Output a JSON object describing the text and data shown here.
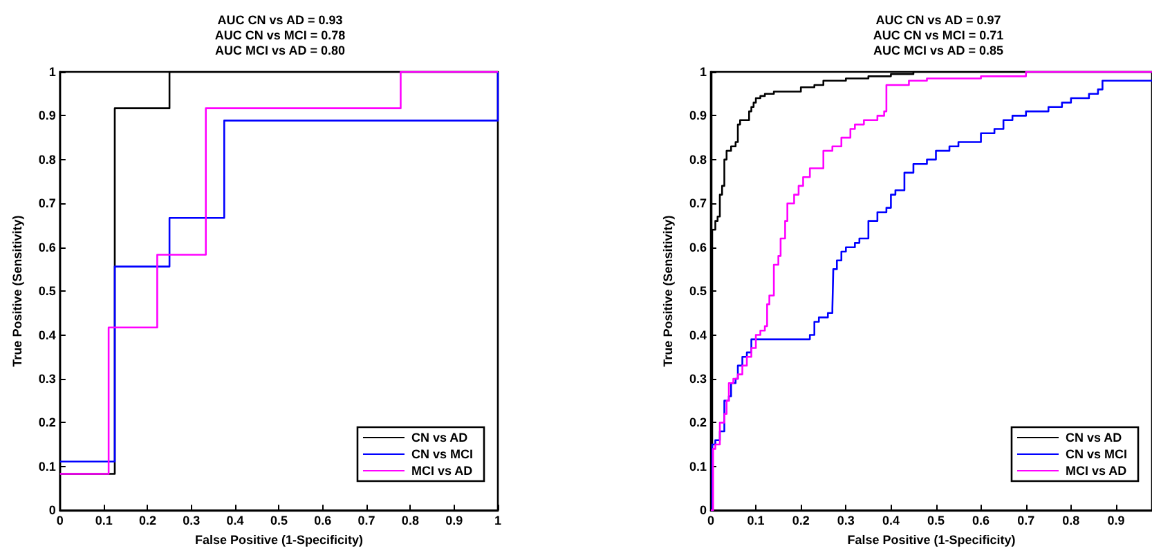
{
  "chart_data": [
    {
      "type": "step",
      "title": "AUC CN vs AD = 0.93\nAUC CN vs MCI = 0.78\nAUC MCI vs AD = 0.80",
      "xlabel": "False Positive (1-Specificity)",
      "ylabel": "True Positive (Sensitivity)",
      "xlim": [
        0,
        1
      ],
      "ylim": [
        0,
        1
      ],
      "xticks": [
        0,
        0.1,
        0.2,
        0.3,
        0.4,
        0.5,
        0.6,
        0.7,
        0.8,
        0.9,
        1
      ],
      "yticks": [
        0,
        0.1,
        0.2,
        0.3,
        0.4,
        0.5,
        0.6,
        0.7,
        0.8,
        0.9,
        1
      ],
      "legend": "bottom right",
      "grid": false,
      "series": [
        {
          "name": "CN vs AD",
          "color": "#000000",
          "x": [
            0,
            0.125,
            0.25,
            1
          ],
          "values": [
            0.083,
            0.917,
            1,
            1
          ]
        },
        {
          "name": "CN vs MCI",
          "color": "#0000ff",
          "x": [
            0,
            0.125,
            0.25,
            0.375,
            1,
            1
          ],
          "values": [
            0.111,
            0.556,
            0.667,
            0.889,
            0.889,
            1
          ]
        },
        {
          "name": "MCI vs AD",
          "color": "#ff00ff",
          "x": [
            0,
            0.111,
            0.222,
            0.333,
            0.778,
            1
          ],
          "values": [
            0.083,
            0.417,
            0.583,
            0.917,
            1,
            1
          ]
        }
      ]
    },
    {
      "type": "step",
      "title": "AUC CN vs AD = 0.97\nAUC CN vs MCI = 0.71\nAUC MCI vs AD = 0.85",
      "xlabel": "False Positive (1-Specificity)",
      "ylabel": "True Positive (Sensitivity)",
      "xlim": [
        0,
        0.98
      ],
      "ylim": [
        0,
        1
      ],
      "xticks": [
        0,
        0.1,
        0.2,
        0.3,
        0.4,
        0.5,
        0.6,
        0.7,
        0.8,
        0.9
      ],
      "yticks": [
        0,
        0.1,
        0.2,
        0.3,
        0.4,
        0.5,
        0.6,
        0.7,
        0.8,
        0.9,
        1
      ],
      "legend": "bottom right",
      "grid": false,
      "series": [
        {
          "name": "CN vs AD",
          "color": "#000000",
          "x": [
            0,
            0.003,
            0.01,
            0.015,
            0.02,
            0.025,
            0.03,
            0.035,
            0.045,
            0.055,
            0.06,
            0.065,
            0.08,
            0.085,
            0.09,
            0.095,
            0.1,
            0.11,
            0.12,
            0.14,
            0.18,
            0.2,
            0.23,
            0.25,
            0.3,
            0.35,
            0.4,
            0.45,
            0.98
          ],
          "values": [
            0,
            0.64,
            0.66,
            0.67,
            0.72,
            0.74,
            0.8,
            0.82,
            0.83,
            0.84,
            0.88,
            0.89,
            0.89,
            0.91,
            0.92,
            0.93,
            0.94,
            0.945,
            0.95,
            0.955,
            0.955,
            0.965,
            0.97,
            0.98,
            0.985,
            0.99,
            0.995,
            1,
            1
          ]
        },
        {
          "name": "CN vs MCI",
          "color": "#0000ff",
          "x": [
            0,
            0.003,
            0.01,
            0.02,
            0.03,
            0.04,
            0.045,
            0.055,
            0.06,
            0.07,
            0.08,
            0.09,
            0.21,
            0.22,
            0.23,
            0.24,
            0.26,
            0.27,
            0.272,
            0.28,
            0.29,
            0.3,
            0.32,
            0.33,
            0.35,
            0.37,
            0.39,
            0.4,
            0.41,
            0.43,
            0.45,
            0.48,
            0.5,
            0.53,
            0.55,
            0.6,
            0.63,
            0.65,
            0.67,
            0.7,
            0.75,
            0.78,
            0.8,
            0.84,
            0.86,
            0.87,
            0.98
          ],
          "values": [
            0,
            0.15,
            0.16,
            0.18,
            0.25,
            0.26,
            0.29,
            0.3,
            0.33,
            0.35,
            0.36,
            0.39,
            0.39,
            0.4,
            0.43,
            0.44,
            0.45,
            0.46,
            0.55,
            0.57,
            0.59,
            0.6,
            0.61,
            0.62,
            0.66,
            0.68,
            0.69,
            0.72,
            0.73,
            0.77,
            0.79,
            0.8,
            0.82,
            0.83,
            0.84,
            0.86,
            0.87,
            0.89,
            0.9,
            0.91,
            0.92,
            0.93,
            0.94,
            0.95,
            0.96,
            0.98,
            0.98
          ]
        },
        {
          "name": "MCI vs AD",
          "color": "#ff00ff",
          "x": [
            0,
            0.005,
            0.01,
            0.02,
            0.03,
            0.035,
            0.04,
            0.05,
            0.06,
            0.07,
            0.08,
            0.09,
            0.1,
            0.11,
            0.12,
            0.125,
            0.13,
            0.14,
            0.15,
            0.155,
            0.165,
            0.17,
            0.185,
            0.195,
            0.205,
            0.22,
            0.25,
            0.27,
            0.29,
            0.31,
            0.32,
            0.34,
            0.37,
            0.385,
            0.39,
            0.44,
            0.48,
            0.6,
            0.7,
            0.98
          ],
          "values": [
            0,
            0.14,
            0.15,
            0.2,
            0.22,
            0.25,
            0.29,
            0.3,
            0.31,
            0.33,
            0.35,
            0.37,
            0.4,
            0.41,
            0.42,
            0.47,
            0.49,
            0.56,
            0.58,
            0.62,
            0.66,
            0.7,
            0.72,
            0.74,
            0.76,
            0.78,
            0.82,
            0.83,
            0.85,
            0.87,
            0.88,
            0.89,
            0.9,
            0.91,
            0.97,
            0.98,
            0.985,
            0.99,
            1,
            1
          ]
        }
      ]
    }
  ]
}
